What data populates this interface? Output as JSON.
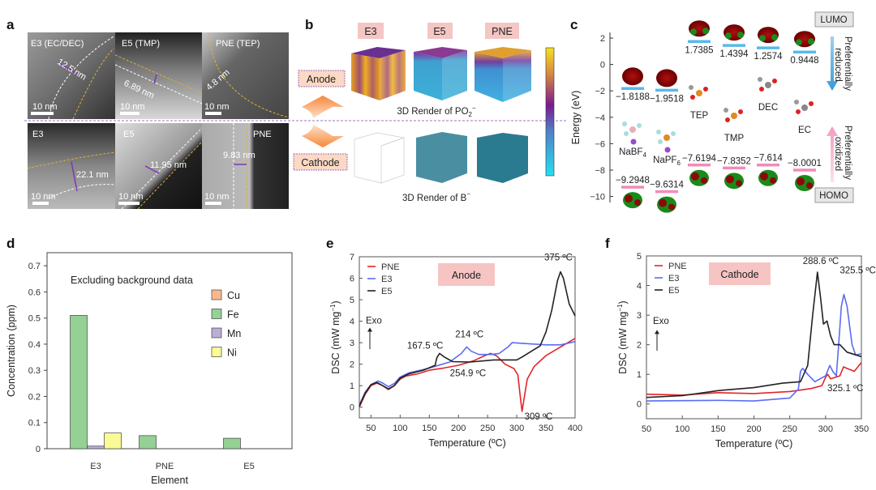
{
  "panels": {
    "a": {
      "label": "a",
      "images": [
        {
          "title": "E3 (EC/DEC)",
          "thickness": "12.5 nm",
          "scale": "10 nm"
        },
        {
          "title": "E5 (TMP)",
          "thickness": "6.89 nm",
          "scale": "10 nm"
        },
        {
          "title": "PNE (TEP)",
          "thickness": "4.8 nm",
          "scale": "10 nm"
        },
        {
          "title": "E3",
          "thickness": "22.1 nm",
          "scale": "10 nm"
        },
        {
          "title": "E5",
          "thickness": "11.95 nm",
          "scale": "10 nm"
        },
        {
          "title": "PNE",
          "thickness": "9.83 nm",
          "scale": "10 nm"
        }
      ]
    },
    "b": {
      "label": "b",
      "columns": [
        "E3",
        "E5",
        "PNE"
      ],
      "anode": "Anode",
      "cathode": "Cathode",
      "caption_top": "3D Render of PO",
      "caption_top_sub": "2",
      "caption_top_sup": "−",
      "caption_bottom": "3D Render of B",
      "caption_bottom_sup": "−",
      "colors": {
        "tag": "#f4c6c4",
        "box": "#fbd9c4",
        "arrow": "#f7873a"
      }
    },
    "c": {
      "label": "c",
      "ylabel": "Energy (eV)",
      "yticks": [
        "2",
        "0",
        "−2",
        "−4",
        "−6",
        "−8",
        "−10"
      ],
      "lumo_label": "LUMO",
      "homo_label": "HOMO",
      "reduced_label": "Preferentially reduced",
      "oxidized_label": "Preferentially oxidized",
      "molecules": [
        {
          "name": "NaBF",
          "sub": "4",
          "lumo": -1.8188,
          "lumo_text": "−1.8188",
          "homo": -9.2948,
          "homo_text": "−9.2948"
        },
        {
          "name": "NaPF",
          "sub": "6",
          "lumo": -1.9518,
          "lumo_text": "−1.9518",
          "homo": -9.6314,
          "homo_text": "−9.6314"
        },
        {
          "name": "TEP",
          "sub": "",
          "lumo": 1.7385,
          "lumo_text": "1.7385",
          "homo": -7.6194,
          "homo_text": "−7.6194"
        },
        {
          "name": "TMP",
          "sub": "",
          "lumo": 1.4394,
          "lumo_text": "1.4394",
          "homo": -7.8352,
          "homo_text": "−7.8352"
        },
        {
          "name": "DEC",
          "sub": "",
          "lumo": 1.2574,
          "lumo_text": "1.2574",
          "homo": -7.614,
          "homo_text": "−7.614"
        },
        {
          "name": "EC",
          "sub": "",
          "lumo": 0.9448,
          "lumo_text": "0.9448",
          "homo": -8.0001,
          "homo_text": "−8.0001"
        }
      ],
      "colors": {
        "lumo": "#5bb8e8",
        "homo": "#f08cb8"
      }
    }
  },
  "chart_data": [
    {
      "id": "d",
      "label": "d",
      "type": "bar",
      "title": "Excluding background data",
      "xlabel": "Element",
      "ylabel": "Concentration (ppm)",
      "ylim": [
        0,
        0.75
      ],
      "yticks": [
        0,
        0.1,
        0.2,
        0.3,
        0.4,
        0.5,
        0.6,
        0.7
      ],
      "ytick_labels": [
        "0",
        "0.1",
        "0.2",
        "0.3",
        "0.4",
        "0.5",
        "0.6",
        "0.7"
      ],
      "categories": [
        "E3",
        "PNE",
        "E5"
      ],
      "legend_position": "top-right",
      "series": [
        {
          "name": "Cu",
          "color": "#f9b98c",
          "values": [
            0,
            0,
            0
          ]
        },
        {
          "name": "Fe",
          "color": "#95d095",
          "values": [
            0.51,
            0.05,
            0.04
          ]
        },
        {
          "name": "Mn",
          "color": "#b9aed6",
          "values": [
            0.01,
            0,
            0
          ]
        },
        {
          "name": "Ni",
          "color": "#fafa96",
          "values": [
            0.06,
            0,
            0
          ]
        }
      ]
    },
    {
      "id": "e",
      "label": "e",
      "type": "line",
      "tag": "Anode",
      "xlabel": "Temperature (ºC)",
      "ylabel": "DSC (mW mg",
      "ylabel_sup": "−1",
      "ylabel_end": ")",
      "exo": "Exo",
      "xlim": [
        30,
        400
      ],
      "ylim": [
        -0.5,
        7
      ],
      "xticks": [
        50,
        100,
        150,
        200,
        250,
        300,
        350,
        400
      ],
      "yticks": [
        0,
        1,
        2,
        3,
        4,
        5,
        6,
        7
      ],
      "legend_position": "top-left",
      "series": [
        {
          "name": "PNE",
          "color": "#e0262b",
          "points": [
            [
              30,
              0
            ],
            [
              40,
              0.6
            ],
            [
              50,
              1.0
            ],
            [
              60,
              1.12
            ],
            [
              70,
              1.0
            ],
            [
              80,
              0.82
            ],
            [
              90,
              1.0
            ],
            [
              100,
              1.3
            ],
            [
              110,
              1.45
            ],
            [
              130,
              1.55
            ],
            [
              150,
              1.72
            ],
            [
              175,
              1.82
            ],
            [
              200,
              1.95
            ],
            [
              225,
              2.15
            ],
            [
              245,
              2.4
            ],
            [
              255,
              2.5
            ],
            [
              265,
              2.4
            ],
            [
              280,
              2.0
            ],
            [
              295,
              1.8
            ],
            [
              302,
              1.5
            ],
            [
              306,
              0.5
            ],
            [
              309,
              -0.2
            ],
            [
              312,
              0.3
            ],
            [
              318,
              1.3
            ],
            [
              330,
              1.9
            ],
            [
              350,
              2.4
            ],
            [
              375,
              2.8
            ],
            [
              400,
              3.2
            ]
          ]
        },
        {
          "name": "E3",
          "color": "#5a6cf0",
          "points": [
            [
              30,
              0.1
            ],
            [
              40,
              0.7
            ],
            [
              50,
              1.05
            ],
            [
              62,
              1.22
            ],
            [
              70,
              1.12
            ],
            [
              80,
              0.95
            ],
            [
              90,
              1.1
            ],
            [
              100,
              1.4
            ],
            [
              115,
              1.6
            ],
            [
              140,
              1.75
            ],
            [
              160,
              1.9
            ],
            [
              185,
              2.1
            ],
            [
              205,
              2.5
            ],
            [
              214,
              2.8
            ],
            [
              222,
              2.6
            ],
            [
              235,
              2.45
            ],
            [
              255,
              2.45
            ],
            [
              270,
              2.5
            ],
            [
              285,
              2.8
            ],
            [
              292,
              3.0
            ],
            [
              310,
              2.97
            ],
            [
              350,
              2.9
            ],
            [
              375,
              2.9
            ],
            [
              400,
              3.05
            ]
          ]
        },
        {
          "name": "E5",
          "color": "#222222",
          "points": [
            [
              30,
              0.05
            ],
            [
              40,
              0.65
            ],
            [
              50,
              1.05
            ],
            [
              60,
              1.15
            ],
            [
              70,
              1.0
            ],
            [
              80,
              0.85
            ],
            [
              90,
              1.0
            ],
            [
              100,
              1.35
            ],
            [
              115,
              1.55
            ],
            [
              140,
              1.72
            ],
            [
              160,
              1.95
            ],
            [
              163,
              2.3
            ],
            [
              167.5,
              2.5
            ],
            [
              175,
              2.35
            ],
            [
              190,
              2.12
            ],
            [
              220,
              2.1
            ],
            [
              260,
              2.2
            ],
            [
              300,
              2.2
            ],
            [
              310,
              2.35
            ],
            [
              325,
              2.6
            ],
            [
              340,
              2.85
            ],
            [
              350,
              3.5
            ],
            [
              360,
              4.5
            ],
            [
              370,
              5.9
            ],
            [
              375,
              6.3
            ],
            [
              380,
              6.0
            ],
            [
              390,
              4.8
            ],
            [
              400,
              4.25
            ]
          ]
        }
      ],
      "annotations": [
        {
          "text": "167.5 ºC",
          "x": 167.5,
          "y": 2.5
        },
        {
          "text": "214 ºC",
          "x": 214,
          "y": 2.8
        },
        {
          "text": "254.9 ºC",
          "x": 254.9,
          "y": 2.5
        },
        {
          "text": "309 ºC",
          "x": 309,
          "y": -0.2
        },
        {
          "text": "375 ºC",
          "x": 375,
          "y": 6.3
        }
      ]
    },
    {
      "id": "f",
      "label": "f",
      "type": "line",
      "tag": "Cathode",
      "xlabel": "Temperature (ºC)",
      "ylabel": "DSC (mW mg",
      "ylabel_sup": "−1",
      "ylabel_end": ")",
      "exo": "Exo",
      "xlim": [
        50,
        350
      ],
      "ylim": [
        -0.5,
        5
      ],
      "xticks": [
        50,
        100,
        150,
        200,
        250,
        300,
        350
      ],
      "yticks": [
        0,
        1,
        2,
        3,
        4,
        5
      ],
      "legend_position": "top-left",
      "series": [
        {
          "name": "PNE",
          "color": "#e0262b",
          "points": [
            [
              50,
              0.33
            ],
            [
              100,
              0.3
            ],
            [
              150,
              0.38
            ],
            [
              200,
              0.35
            ],
            [
              250,
              0.42
            ],
            [
              280,
              0.52
            ],
            [
              295,
              0.62
            ],
            [
              300,
              0.9
            ],
            [
              303,
              1.0
            ],
            [
              307,
              0.85
            ],
            [
              320,
              0.95
            ],
            [
              325,
              1.25
            ],
            [
              330,
              1.2
            ],
            [
              340,
              1.1
            ],
            [
              350,
              1.4
            ]
          ]
        },
        {
          "name": "E3",
          "color": "#5a6cf0",
          "points": [
            [
              50,
              0.1
            ],
            [
              150,
              0.12
            ],
            [
              200,
              0.1
            ],
            [
              250,
              0.2
            ],
            [
              262,
              0.5
            ],
            [
              265,
              1.1
            ],
            [
              268,
              1.2
            ],
            [
              275,
              1.0
            ],
            [
              285,
              0.75
            ],
            [
              300,
              0.95
            ],
            [
              306,
              1.3
            ],
            [
              310,
              1.1
            ],
            [
              315,
              0.95
            ],
            [
              318,
              1.9
            ],
            [
              322,
              3.3
            ],
            [
              325.5,
              3.7
            ],
            [
              330,
              3.3
            ],
            [
              337,
              2.0
            ],
            [
              342,
              1.65
            ],
            [
              350,
              1.7
            ]
          ]
        },
        {
          "name": "E5",
          "color": "#222222",
          "points": [
            [
              50,
              0.22
            ],
            [
              100,
              0.28
            ],
            [
              150,
              0.45
            ],
            [
              200,
              0.55
            ],
            [
              240,
              0.7
            ],
            [
              265,
              0.75
            ],
            [
              275,
              1.3
            ],
            [
              282,
              3.0
            ],
            [
              288.6,
              4.45
            ],
            [
              293,
              3.6
            ],
            [
              297,
              2.7
            ],
            [
              302,
              2.8
            ],
            [
              307,
              2.3
            ],
            [
              312,
              2.0
            ],
            [
              320,
              2.0
            ],
            [
              330,
              1.75
            ],
            [
              350,
              1.6
            ]
          ]
        }
      ],
      "annotations": [
        {
          "text": "288.6 ºC",
          "x": 288.6,
          "y": 4.45
        },
        {
          "text": "325.5 ºC",
          "x": 325.5,
          "y": 3.7
        },
        {
          "text": "325.1 ºC",
          "x": 325.1,
          "y": 1.25
        }
      ]
    }
  ]
}
